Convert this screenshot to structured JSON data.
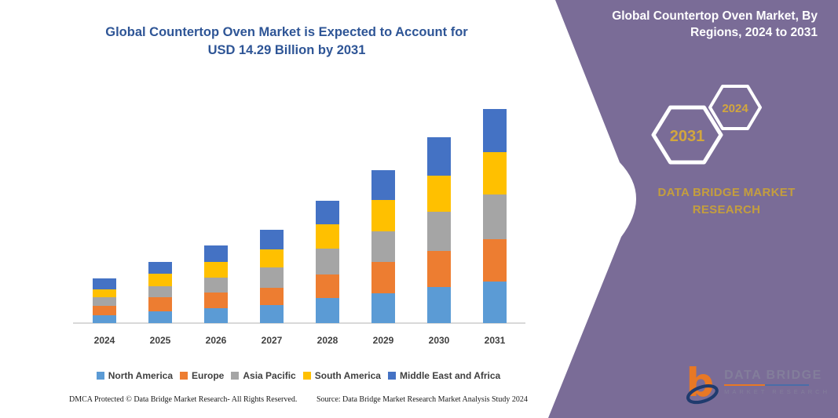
{
  "colors": {
    "purple_bg": "#7A6C97",
    "gold_brand": "#C49E3E",
    "gold_hex_year": "#D2A63E",
    "title_blue": "#2E5596",
    "axis_text": "#3F3F3F",
    "axis_line": "#D9D9D9",
    "hex_stroke": "#FFFFFF",
    "logo_orange": "#E87824",
    "logo_navy": "#1F3B6E"
  },
  "left_panel": {
    "title_line1": "Global Countertop Oven Market is Expected to Account for",
    "title_line2": "USD 14.29 Billion by 2031"
  },
  "chart_data": {
    "type": "bar",
    "stacked": true,
    "title": "Global Countertop Oven Market is Expected to Account for USD 14.29 Billion by 2031",
    "unit": "USD Billion",
    "categories": [
      "2024",
      "2025",
      "2026",
      "2027",
      "2028",
      "2029",
      "2030",
      "2031"
    ],
    "series": [
      {
        "name": "North America",
        "color": "#5B9BD5",
        "values": [
          0.52,
          0.8,
          1.01,
          1.19,
          1.67,
          1.99,
          2.41,
          2.77
        ]
      },
      {
        "name": "Europe",
        "color": "#ED7D31",
        "values": [
          0.64,
          0.94,
          1.01,
          1.19,
          1.57,
          2.09,
          2.41,
          2.83
        ]
      },
      {
        "name": "Asia Pacific",
        "color": "#A5A5A5",
        "values": [
          0.58,
          0.7,
          0.99,
          1.35,
          1.73,
          2.04,
          2.62,
          2.98
        ]
      },
      {
        "name": "South America",
        "color": "#FFC000",
        "values": [
          0.52,
          0.84,
          1.08,
          1.17,
          1.62,
          2.09,
          2.41,
          2.83
        ]
      },
      {
        "name": "Middle East and Africa",
        "color": "#4472C4",
        "values": [
          0.73,
          0.82,
          1.08,
          1.31,
          1.57,
          1.99,
          2.56,
          2.88
        ]
      }
    ],
    "totals": [
      2.99,
      4.1,
      5.17,
      6.21,
      8.16,
      10.2,
      12.41,
      14.29
    ],
    "stack_order": "bottom_to_top",
    "ylim": [
      0,
      14.29
    ],
    "y_axis_shown": false,
    "gridlines": false,
    "legend_position": "bottom"
  },
  "footer": {
    "left": "DMCA Protected © Data Bridge Market Research-  All Rights Reserved.",
    "right": "Source: Data Bridge Market Research  Market Analysis Study 2024"
  },
  "right_panel": {
    "title": "Global Countertop Oven Market, By Regions, 2024 to 2031",
    "hex_year_large": "2031",
    "hex_year_small": "2024",
    "brand_line1": "DATA BRIDGE MARKET",
    "brand_line2": "RESEARCH",
    "logo_brand": "DATA BRIDGE",
    "logo_sub": "MARKET RESEARCH"
  }
}
